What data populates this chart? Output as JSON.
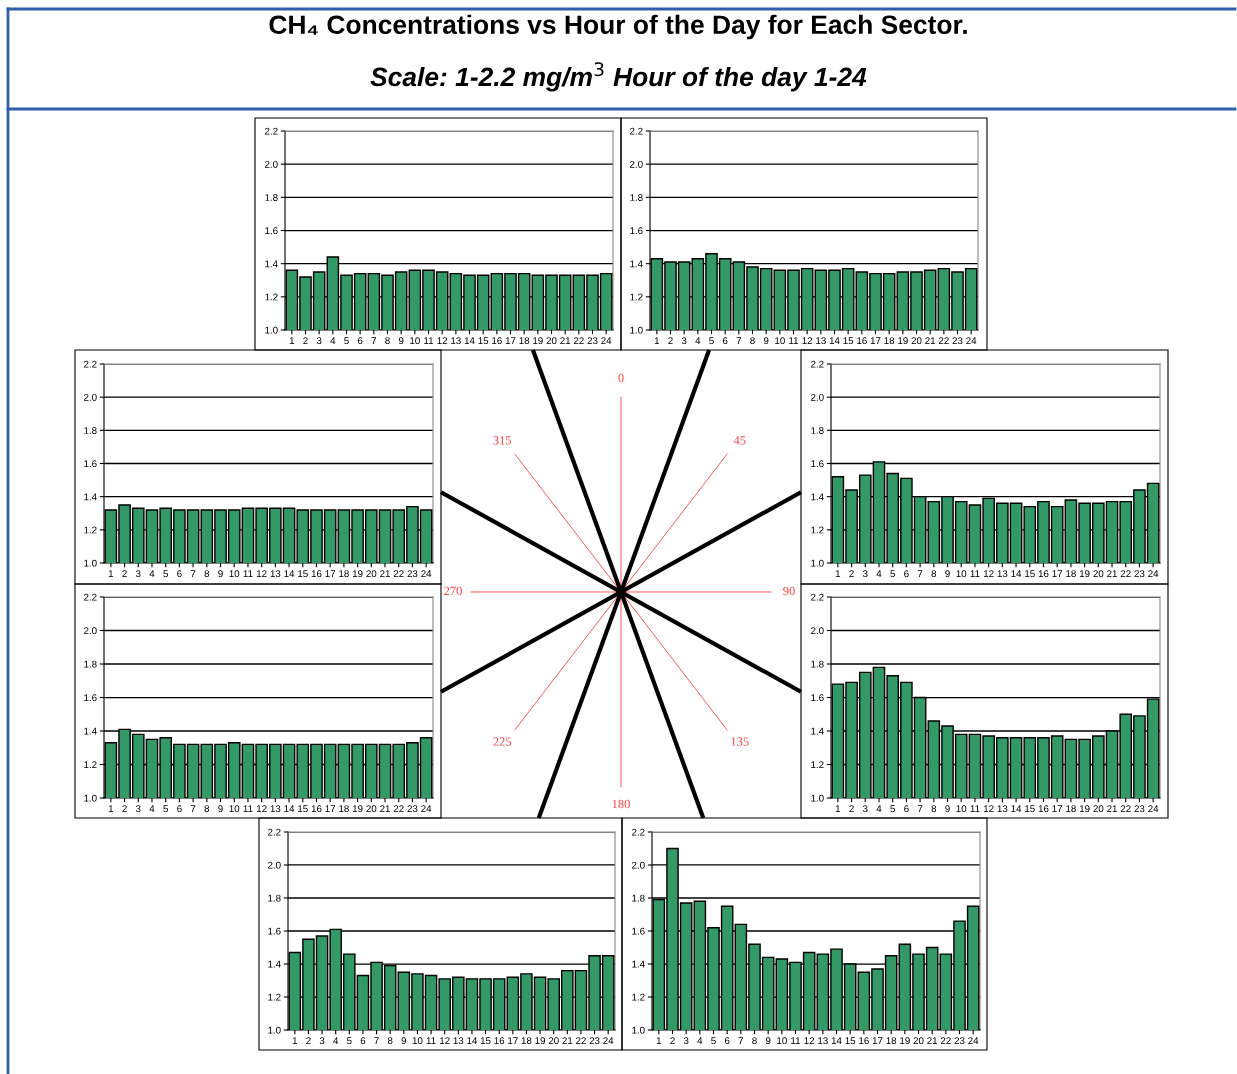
{
  "chart_data": [
    {
      "type": "other",
      "title": "CH₄ Concentrations vs Hour of the Day for Each Sector.",
      "subtitle": "Scale: 1-2.2 mg/m$^{3}$ Hour of the day 1-24"
    },
    {
      "type": "bar",
      "categories": [
        "1",
        "2",
        "3",
        "4",
        "5",
        "6",
        "7",
        "8",
        "9",
        "10",
        "11",
        "12",
        "13",
        "14",
        "15",
        "16",
        "17",
        "18",
        "19",
        "20",
        "21",
        "22",
        "23",
        "24"
      ],
      "color": "#339966",
      "values": [
        1.36,
        1.32,
        1.35,
        1.44,
        1.33,
        1.34,
        1.34,
        1.33,
        1.35,
        1.36,
        1.36,
        1.35,
        1.34,
        1.33,
        1.33,
        1.34,
        1.34,
        1.34,
        1.33,
        1.33,
        1.33,
        1.33,
        1.33,
        1.34
      ],
      "ylim": [
        1.0,
        2.2
      ],
      "yticks": [
        {
          "value": 1.0,
          "label": "1.0"
        },
        {
          "value": 1.2,
          "label": "1.2"
        },
        {
          "value": 1.4,
          "label": "1.4"
        },
        {
          "value": 1.6,
          "label": "1.6"
        },
        {
          "value": 1.8,
          "label": "1.8"
        },
        {
          "value": 2.0,
          "label": "2.0"
        },
        {
          "value": 2.2,
          "label": "2.2"
        }
      ],
      "grid": "y"
    },
    {
      "type": "bar",
      "categories": [
        "1",
        "2",
        "3",
        "4",
        "5",
        "6",
        "7",
        "8",
        "9",
        "10",
        "11",
        "12",
        "13",
        "14",
        "15",
        "16",
        "17",
        "18",
        "19",
        "20",
        "21",
        "22",
        "23",
        "24"
      ],
      "color": "#339966",
      "values": [
        1.43,
        1.41,
        1.41,
        1.43,
        1.46,
        1.43,
        1.41,
        1.38,
        1.37,
        1.36,
        1.36,
        1.37,
        1.36,
        1.36,
        1.37,
        1.35,
        1.34,
        1.34,
        1.35,
        1.35,
        1.36,
        1.37,
        1.35,
        1.37
      ],
      "ylim": [
        1.0,
        2.2
      ],
      "yticks": [
        {
          "value": 1.0,
          "label": "1.0"
        },
        {
          "value": 1.2,
          "label": "1.2"
        },
        {
          "value": 1.4,
          "label": "1.4"
        },
        {
          "value": 1.6,
          "label": "1.6"
        },
        {
          "value": 1.8,
          "label": "1.8"
        },
        {
          "value": 2.0,
          "label": "2.0"
        },
        {
          "value": 2.2,
          "label": "2.2"
        }
      ],
      "grid": "y"
    },
    {
      "type": "bar",
      "categories": [
        "1",
        "2",
        "3",
        "4",
        "5",
        "6",
        "7",
        "8",
        "9",
        "10",
        "11",
        "12",
        "13",
        "14",
        "15",
        "16",
        "17",
        "18",
        "19",
        "20",
        "21",
        "22",
        "23",
        "24"
      ],
      "color": "#339966",
      "values": [
        1.32,
        1.35,
        1.33,
        1.32,
        1.33,
        1.32,
        1.32,
        1.32,
        1.32,
        1.32,
        1.33,
        1.33,
        1.33,
        1.33,
        1.32,
        1.32,
        1.32,
        1.32,
        1.32,
        1.32,
        1.32,
        1.32,
        1.34,
        1.32
      ],
      "ylim": [
        1.0,
        2.2
      ],
      "yticks": [
        {
          "value": 1.0,
          "label": "1.0"
        },
        {
          "value": 1.2,
          "label": "1.2"
        },
        {
          "value": 1.4,
          "label": "1.4"
        },
        {
          "value": 1.6,
          "label": "1.6"
        },
        {
          "value": 1.8,
          "label": "1.8"
        },
        {
          "value": 2.0,
          "label": "2.0"
        },
        {
          "value": 2.2,
          "label": "2.2"
        }
      ],
      "grid": "y"
    },
    {
      "type": "bar",
      "categories": [
        "1",
        "2",
        "3",
        "4",
        "5",
        "6",
        "7",
        "8",
        "9",
        "10",
        "11",
        "12",
        "13",
        "14",
        "15",
        "16",
        "17",
        "18",
        "19",
        "20",
        "21",
        "22",
        "23",
        "24"
      ],
      "color": "#339966",
      "values": [
        1.52,
        1.44,
        1.53,
        1.61,
        1.54,
        1.51,
        1.4,
        1.37,
        1.4,
        1.37,
        1.35,
        1.39,
        1.36,
        1.36,
        1.34,
        1.37,
        1.34,
        1.38,
        1.36,
        1.36,
        1.37,
        1.37,
        1.44,
        1.48
      ],
      "ylim": [
        1.0,
        2.2
      ],
      "yticks": [
        {
          "value": 1.0,
          "label": "1.0"
        },
        {
          "value": 1.2,
          "label": "1.2"
        },
        {
          "value": 1.4,
          "label": "1.4"
        },
        {
          "value": 1.6,
          "label": "1.6"
        },
        {
          "value": 1.8,
          "label": "1.8"
        },
        {
          "value": 2.0,
          "label": "2.0"
        },
        {
          "value": 2.2,
          "label": "2.2"
        }
      ],
      "grid": "y"
    },
    {
      "type": "bar",
      "categories": [
        "1",
        "2",
        "3",
        "4",
        "5",
        "6",
        "7",
        "8",
        "9",
        "10",
        "11",
        "12",
        "13",
        "14",
        "15",
        "16",
        "17",
        "18",
        "19",
        "20",
        "21",
        "22",
        "23",
        "24"
      ],
      "color": "#339966",
      "values": [
        1.33,
        1.41,
        1.38,
        1.35,
        1.36,
        1.32,
        1.32,
        1.32,
        1.32,
        1.33,
        1.32,
        1.32,
        1.32,
        1.32,
        1.32,
        1.32,
        1.32,
        1.32,
        1.32,
        1.32,
        1.32,
        1.32,
        1.33,
        1.36
      ],
      "ylim": [
        1.0,
        2.2
      ],
      "yticks": [
        {
          "value": 1.0,
          "label": "1.0"
        },
        {
          "value": 1.2,
          "label": "1.2"
        },
        {
          "value": 1.4,
          "label": "1.4"
        },
        {
          "value": 1.6,
          "label": "1.6"
        },
        {
          "value": 1.8,
          "label": "1.8"
        },
        {
          "value": 2.0,
          "label": "2.0"
        },
        {
          "value": 2.2,
          "label": "2.2"
        }
      ],
      "grid": "y"
    },
    {
      "type": "bar",
      "categories": [
        "1",
        "2",
        "3",
        "4",
        "5",
        "6",
        "7",
        "8",
        "9",
        "10",
        "11",
        "12",
        "13",
        "14",
        "15",
        "16",
        "17",
        "18",
        "19",
        "20",
        "21",
        "22",
        "23",
        "24"
      ],
      "color": "#339966",
      "values": [
        1.68,
        1.69,
        1.75,
        1.78,
        1.73,
        1.69,
        1.6,
        1.46,
        1.43,
        1.38,
        1.38,
        1.37,
        1.36,
        1.36,
        1.36,
        1.36,
        1.37,
        1.35,
        1.35,
        1.37,
        1.4,
        1.5,
        1.49,
        1.59
      ],
      "ylim": [
        1.0,
        2.2
      ],
      "yticks": [
        {
          "value": 1.0,
          "label": "1.0"
        },
        {
          "value": 1.2,
          "label": "1.2"
        },
        {
          "value": 1.4,
          "label": "1.4"
        },
        {
          "value": 1.6,
          "label": "1.6"
        },
        {
          "value": 1.8,
          "label": "1.8"
        },
        {
          "value": 2.0,
          "label": "2.0"
        },
        {
          "value": 2.2,
          "label": "2.2"
        }
      ],
      "grid": "y"
    },
    {
      "type": "bar",
      "categories": [
        "1",
        "2",
        "3",
        "4",
        "5",
        "6",
        "7",
        "8",
        "9",
        "10",
        "11",
        "12",
        "13",
        "14",
        "15",
        "16",
        "17",
        "18",
        "19",
        "20",
        "21",
        "22",
        "23",
        "24"
      ],
      "color": "#339966",
      "values": [
        1.47,
        1.55,
        1.57,
        1.61,
        1.46,
        1.33,
        1.41,
        1.39,
        1.35,
        1.34,
        1.33,
        1.31,
        1.32,
        1.31,
        1.31,
        1.31,
        1.32,
        1.34,
        1.32,
        1.31,
        1.36,
        1.36,
        1.45,
        1.45
      ],
      "ylim": [
        1.0,
        2.2
      ],
      "yticks": [
        {
          "value": 1.0,
          "label": "1.0"
        },
        {
          "value": 1.2,
          "label": "1.2"
        },
        {
          "value": 1.4,
          "label": "1.4"
        },
        {
          "value": 1.6,
          "label": "1.6"
        },
        {
          "value": 1.8,
          "label": "1.8"
        },
        {
          "value": 2.0,
          "label": "2.0"
        },
        {
          "value": 2.2,
          "label": "2.2"
        }
      ],
      "grid": "y"
    },
    {
      "type": "bar",
      "categories": [
        "1",
        "2",
        "3",
        "4",
        "5",
        "6",
        "7",
        "8",
        "9",
        "10",
        "11",
        "12",
        "13",
        "14",
        "15",
        "16",
        "17",
        "18",
        "19",
        "20",
        "21",
        "22",
        "23",
        "24"
      ],
      "color": "#339966",
      "values": [
        1.79,
        2.1,
        1.77,
        1.78,
        1.62,
        1.75,
        1.64,
        1.52,
        1.44,
        1.43,
        1.41,
        1.47,
        1.46,
        1.49,
        1.4,
        1.35,
        1.37,
        1.45,
        1.52,
        1.46,
        1.5,
        1.46,
        1.66,
        1.75
      ],
      "ylim": [
        1.0,
        2.2
      ],
      "yticks": [
        {
          "value": 1.0,
          "label": "1.0"
        },
        {
          "value": 1.2,
          "label": "1.2"
        },
        {
          "value": 1.4,
          "label": "1.4"
        },
        {
          "value": 1.6,
          "label": "1.6"
        },
        {
          "value": 1.8,
          "label": "1.8"
        },
        {
          "value": 2.0,
          "label": "2.0"
        },
        {
          "value": 2.2,
          "label": "2.2"
        }
      ],
      "grid": "y"
    },
    {
      "type": "other",
      "annotations": [
        "0",
        "45",
        "90",
        "135",
        "180",
        "225",
        "270",
        "315"
      ]
    }
  ]
}
